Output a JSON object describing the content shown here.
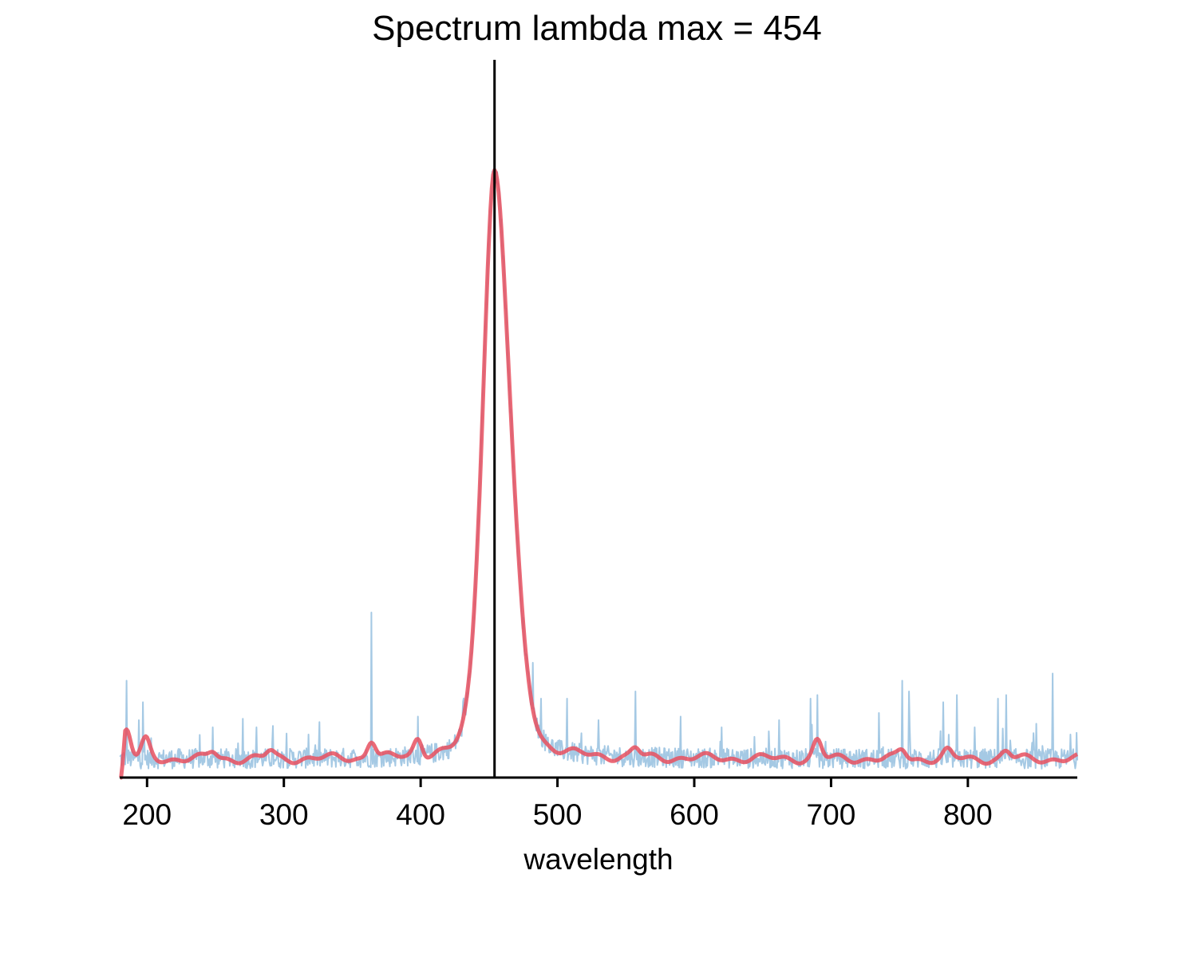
{
  "chart_data": {
    "type": "line",
    "title": "Spectrum lambda max = 454",
    "xlabel": "wavelength",
    "ylabel": "",
    "xlim": [
      180,
      880
    ],
    "ylim": [
      0,
      1.0
    ],
    "x_ticks": [
      200,
      300,
      400,
      500,
      600,
      700,
      800
    ],
    "y_axis_visible": false,
    "grid": false,
    "legend": "none",
    "lambda_max": 454,
    "peak": {
      "center": 454,
      "height": 0.82,
      "sigma_left": 9,
      "sigma_right": 12
    },
    "baseline": 0.026,
    "raw_spikes": [
      [
        185,
        0.135
      ],
      [
        194,
        0.08
      ],
      [
        197,
        0.105
      ],
      [
        203,
        0.055
      ],
      [
        248,
        0.07
      ],
      [
        270,
        0.082
      ],
      [
        280,
        0.07
      ],
      [
        292,
        0.072
      ],
      [
        318,
        0.06
      ],
      [
        364,
        0.23
      ],
      [
        398,
        0.085
      ],
      [
        435,
        0.14
      ],
      [
        482,
        0.16
      ],
      [
        488,
        0.11
      ],
      [
        507,
        0.11
      ],
      [
        530,
        0.08
      ],
      [
        557,
        0.12
      ],
      [
        590,
        0.085
      ],
      [
        620,
        0.07
      ],
      [
        662,
        0.08
      ],
      [
        685,
        0.11
      ],
      [
        690,
        0.115
      ],
      [
        735,
        0.09
      ],
      [
        752,
        0.135
      ],
      [
        757,
        0.12
      ],
      [
        782,
        0.105
      ],
      [
        792,
        0.115
      ],
      [
        805,
        0.07
      ],
      [
        822,
        0.11
      ],
      [
        828,
        0.115
      ],
      [
        850,
        0.075
      ],
      [
        862,
        0.145
      ],
      [
        875,
        0.06
      ]
    ],
    "smoothed_bumps": [
      [
        185,
        0.04
      ],
      [
        199,
        0.025
      ],
      [
        248,
        0.01
      ],
      [
        290,
        0.01
      ],
      [
        364,
        0.025
      ],
      [
        398,
        0.025
      ],
      [
        557,
        0.012
      ],
      [
        690,
        0.025
      ],
      [
        752,
        0.012
      ],
      [
        785,
        0.01
      ],
      [
        828,
        0.01
      ]
    ],
    "series": [
      {
        "name": "",
        "role": "raw",
        "color": "#7fb2d8",
        "opacity": 0.7
      },
      {
        "name": "",
        "role": "smoothed",
        "color": "#e8505f",
        "opacity": 0.85
      }
    ],
    "marker_line": {
      "x": 454,
      "color": "#000000"
    }
  }
}
